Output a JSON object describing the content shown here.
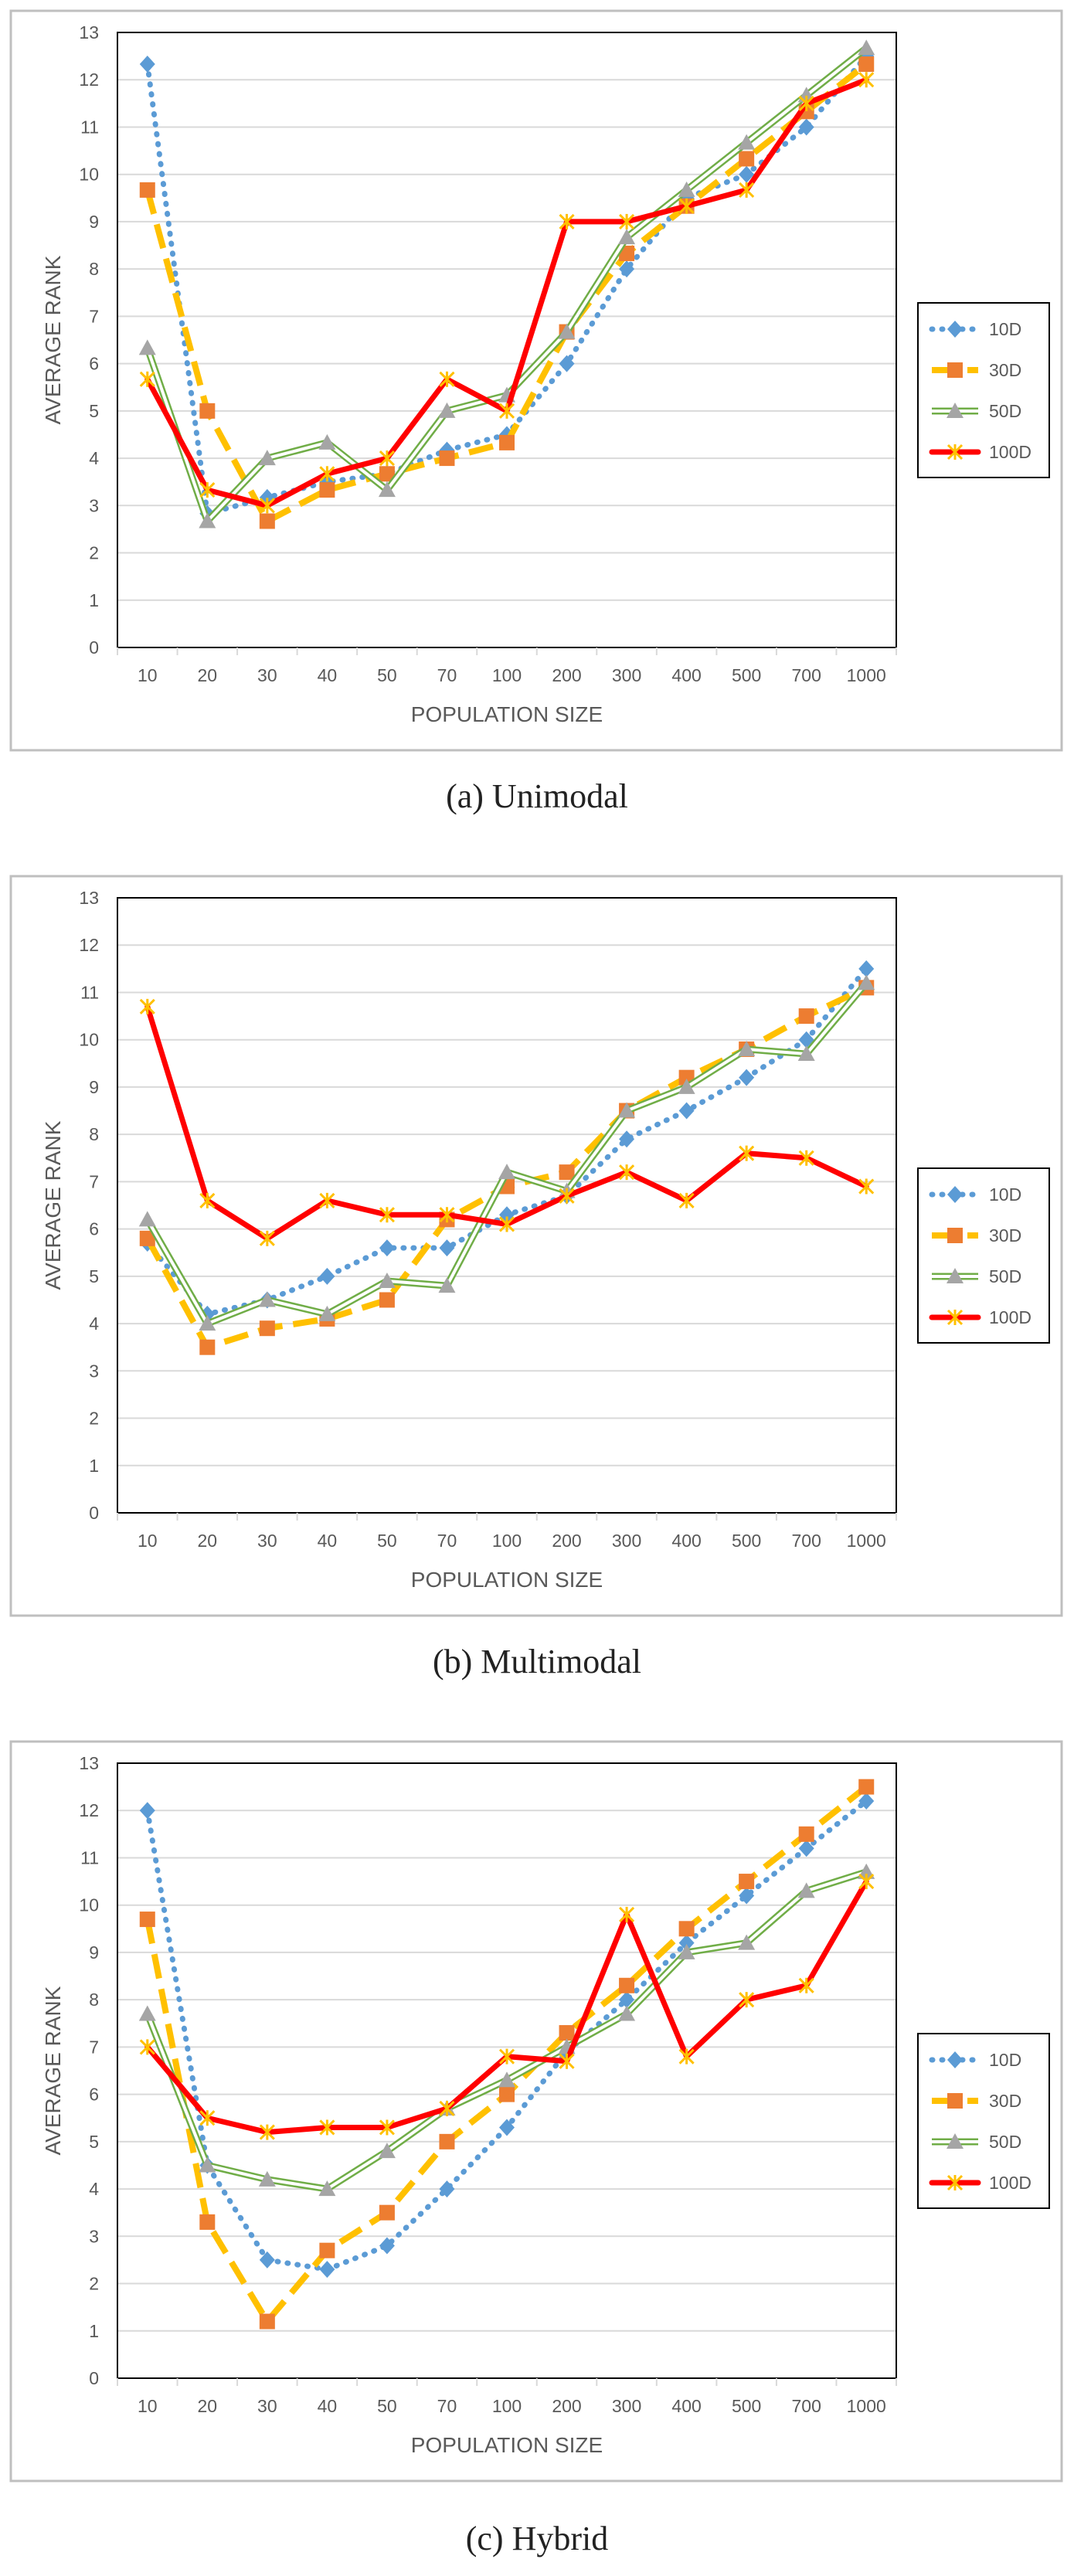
{
  "chart_data": [
    {
      "type": "line",
      "caption": "(a)  Unimodal",
      "xlabel": "POPULATION SIZE",
      "ylabel": "AVERAGE RANK",
      "ylim": [
        0,
        13
      ],
      "yticks": [
        0,
        1,
        2,
        3,
        4,
        5,
        6,
        7,
        8,
        9,
        10,
        11,
        12,
        13
      ],
      "categories": [
        "10",
        "20",
        "30",
        "40",
        "50",
        "70",
        "100",
        "200",
        "300",
        "400",
        "500",
        "700",
        "1000"
      ],
      "series": [
        {
          "name": "10D",
          "values": [
            12.33,
            2.83,
            3.17,
            3.5,
            3.67,
            4.17,
            4.5,
            6.0,
            8.0,
            9.5,
            10.0,
            11.0,
            12.5
          ]
        },
        {
          "name": "30D",
          "values": [
            9.67,
            5.0,
            2.67,
            3.33,
            3.67,
            4.0,
            4.33,
            6.67,
            8.33,
            9.33,
            10.33,
            11.33,
            12.33
          ]
        },
        {
          "name": "50D",
          "values": [
            6.33,
            2.67,
            4.0,
            4.33,
            3.33,
            5.0,
            5.33,
            6.67,
            8.67,
            9.67,
            10.67,
            11.67,
            12.67
          ]
        },
        {
          "name": "100D",
          "values": [
            5.67,
            3.33,
            3.0,
            3.67,
            4.0,
            5.67,
            5.0,
            9.0,
            9.0,
            9.33,
            9.67,
            11.5,
            12.0
          ]
        }
      ]
    },
    {
      "type": "line",
      "caption": "(b)  Multimodal",
      "xlabel": "POPULATION SIZE",
      "ylabel": "AVERAGE RANK",
      "ylim": [
        0,
        13
      ],
      "yticks": [
        0,
        1,
        2,
        3,
        4,
        5,
        6,
        7,
        8,
        9,
        10,
        11,
        12,
        13
      ],
      "categories": [
        "10",
        "20",
        "30",
        "40",
        "50",
        "70",
        "100",
        "200",
        "300",
        "400",
        "500",
        "700",
        "1000"
      ],
      "series": [
        {
          "name": "10D",
          "values": [
            5.7,
            4.2,
            4.5,
            5.0,
            5.6,
            5.6,
            6.3,
            6.7,
            7.9,
            8.5,
            9.2,
            10.0,
            11.5
          ]
        },
        {
          "name": "30D",
          "values": [
            5.8,
            3.5,
            3.9,
            4.1,
            4.5,
            6.2,
            6.9,
            7.2,
            8.5,
            9.2,
            9.8,
            10.5,
            11.1
          ]
        },
        {
          "name": "50D",
          "values": [
            6.2,
            4.0,
            4.5,
            4.2,
            4.9,
            4.8,
            7.2,
            6.8,
            8.5,
            9.0,
            9.8,
            9.7,
            11.2
          ]
        },
        {
          "name": "100D",
          "values": [
            10.7,
            6.6,
            5.8,
            6.6,
            6.3,
            6.3,
            6.1,
            6.7,
            7.2,
            6.6,
            7.6,
            7.5,
            6.9
          ]
        }
      ]
    },
    {
      "type": "line",
      "caption": "(c)  Hybrid",
      "xlabel": "POPULATION SIZE",
      "ylabel": "AVERAGE RANK",
      "ylim": [
        0,
        13
      ],
      "yticks": [
        0,
        1,
        2,
        3,
        4,
        5,
        6,
        7,
        8,
        9,
        10,
        11,
        12,
        13
      ],
      "categories": [
        "10",
        "20",
        "30",
        "40",
        "50",
        "70",
        "100",
        "200",
        "300",
        "400",
        "500",
        "700",
        "1000"
      ],
      "series": [
        {
          "name": "10D",
          "values": [
            12.0,
            4.5,
            2.5,
            2.3,
            2.8,
            4.0,
            5.3,
            6.9,
            8.0,
            9.2,
            10.2,
            11.2,
            12.2
          ]
        },
        {
          "name": "30D",
          "values": [
            9.7,
            3.3,
            1.2,
            2.7,
            3.5,
            5.0,
            6.0,
            7.3,
            8.3,
            9.5,
            10.5,
            11.5,
            12.5
          ]
        },
        {
          "name": "50D",
          "values": [
            7.7,
            4.5,
            4.2,
            4.0,
            4.8,
            5.7,
            6.3,
            7.0,
            7.7,
            9.0,
            9.2,
            10.3,
            10.7
          ]
        },
        {
          "name": "100D",
          "values": [
            7.0,
            5.5,
            5.2,
            5.3,
            5.3,
            5.7,
            6.8,
            6.7,
            9.8,
            6.8,
            8.0,
            8.3,
            10.5
          ]
        }
      ]
    }
  ],
  "colors": {
    "10D": "#5B9BD5",
    "30D": "#ED7D31",
    "50D": "#A5A5A5",
    "100D": "#FF0000",
    "line_30D": "#FFC000",
    "line_50D": "#70AD47",
    "marker_100D": "#FFC000",
    "grid": "#D9D9D9",
    "frame": "#BFBFBF",
    "plot_border": "#000000",
    "tick_text": "#595959"
  }
}
